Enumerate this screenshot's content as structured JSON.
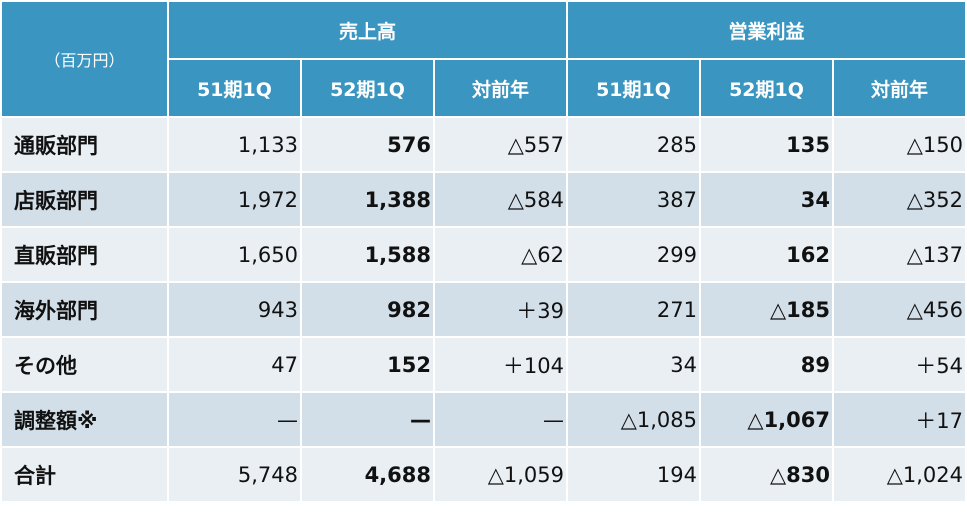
{
  "table": {
    "unit": "（百万円）",
    "groups": [
      "売上高",
      "営業利益"
    ],
    "columns": [
      "51期1Q",
      "52期1Q",
      "対前年",
      "51期1Q",
      "52期1Q",
      "対前年"
    ],
    "rows": [
      {
        "label": "通販部門",
        "cells": [
          "1,133",
          "576",
          "△557",
          "285",
          "135",
          "△150"
        ]
      },
      {
        "label": "店販部門",
        "cells": [
          "1,972",
          "1,388",
          "△584",
          "387",
          "34",
          "△352"
        ]
      },
      {
        "label": "直販部門",
        "cells": [
          "1,650",
          "1,588",
          "△62",
          "299",
          "162",
          "△137"
        ]
      },
      {
        "label": "海外部門",
        "cells": [
          "943",
          "982",
          "＋39",
          "271",
          "△185",
          "△456"
        ]
      },
      {
        "label": "その他",
        "cells": [
          "47",
          "152",
          "＋104",
          "34",
          "89",
          "＋54"
        ]
      },
      {
        "label": "調整額※",
        "cells": [
          "—",
          "—",
          "—",
          "△1,085",
          "△1,067",
          "＋17"
        ]
      },
      {
        "label": "合計",
        "cells": [
          "5,748",
          "4,688",
          "△1,059",
          "194",
          "△830",
          "△1,024"
        ]
      }
    ]
  }
}
